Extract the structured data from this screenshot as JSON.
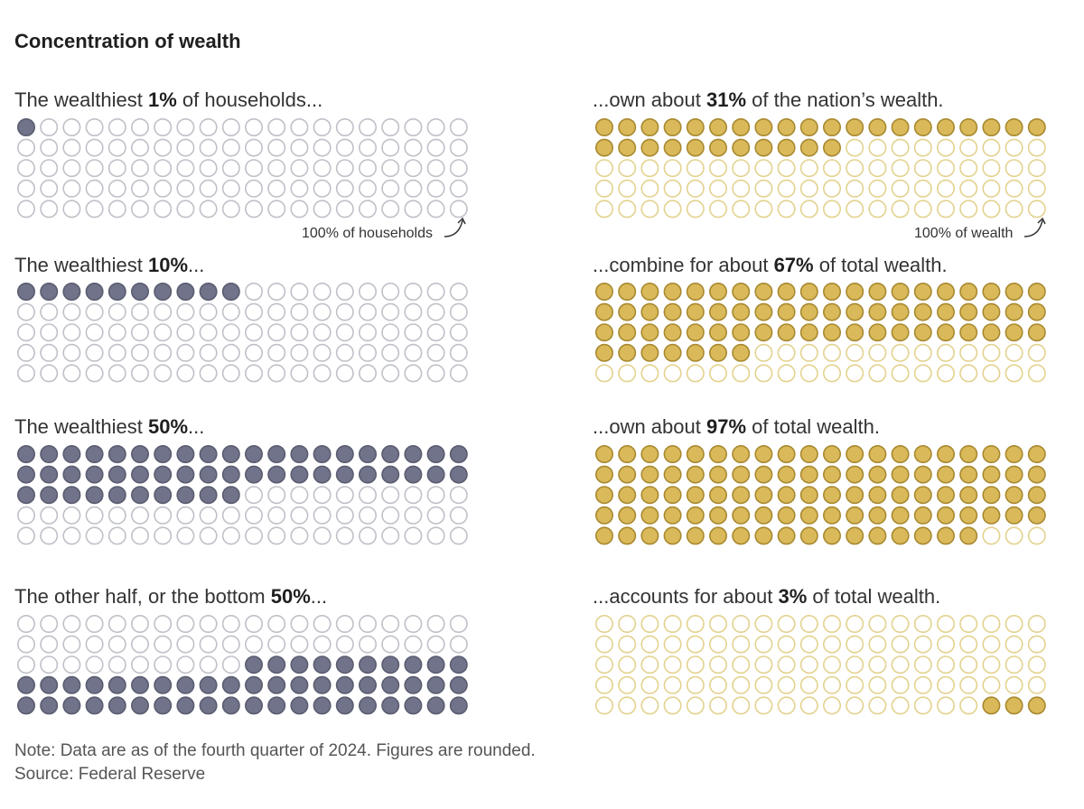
{
  "title": "Concentration of wealth",
  "colors": {
    "households_fill": "#71738a",
    "households_stroke": "#5a5c70",
    "households_empty": "#bfc1c8",
    "wealth_fill": "#d9b95a",
    "wealth_stroke": "#a8892f",
    "wealth_empty": "#e3d28e"
  },
  "annotations": {
    "households": "100% of households",
    "wealth": "100% of wealth"
  },
  "chart_data": {
    "type": "waffle",
    "rows": [
      {
        "households": {
          "pre": "The wealthiest ",
          "bold": "1%",
          "post": " of households...",
          "filled": 1,
          "position": "top"
        },
        "wealth": {
          "pre": "...own about ",
          "bold": "31%",
          "post": " of the nation’s wealth.",
          "filled": 31,
          "position": "top"
        }
      },
      {
        "households": {
          "pre": "The wealthiest ",
          "bold": "10%",
          "post": "...",
          "filled": 10,
          "position": "top"
        },
        "wealth": {
          "pre": "...combine for about ",
          "bold": "67%",
          "post": " of total wealth.",
          "filled": 67,
          "position": "top"
        }
      },
      {
        "households": {
          "pre": "The wealthiest ",
          "bold": "50%",
          "post": "...",
          "filled": 50,
          "position": "top"
        },
        "wealth": {
          "pre": "...own about ",
          "bold": "97%",
          "post": " of total wealth.",
          "filled": 97,
          "position": "top"
        }
      },
      {
        "households": {
          "pre": "The other half, or the bottom ",
          "bold": "50%",
          "post": "...",
          "filled": 50,
          "position": "bottom"
        },
        "wealth": {
          "pre": "...accounts for about ",
          "bold": "3%",
          "post": " of total wealth.",
          "filled": 3,
          "position": "bottom"
        }
      }
    ],
    "grid_columns": 20,
    "grid_rows": 5
  },
  "footer": {
    "note": "Note: Data are as of the fourth quarter of 2024. Figures are rounded.",
    "source": "Source: Federal Reserve"
  }
}
